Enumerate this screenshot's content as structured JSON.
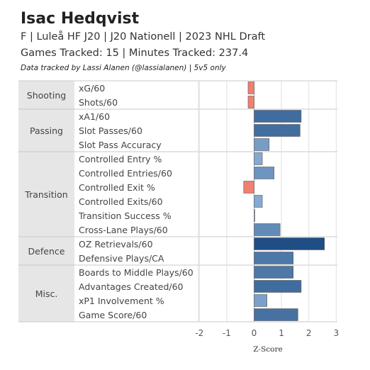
{
  "header": {
    "title": "Isac Hedqvist",
    "subtitle": "F | Luleå HF J20 | J20 Nationell | 2023 NHL Draft",
    "games_line": "Games Tracked: 15 | Minutes Tracked: 237.4",
    "note": "Data tracked by Lassi Alanen (@lassialanen) | 5v5 only"
  },
  "chart_data": {
    "type": "bar",
    "orientation": "horizontal",
    "xlabel": "Z-Score",
    "xlim": [
      -2.2,
      3.05
    ],
    "xticks": [
      -2,
      -1,
      0,
      1,
      2,
      3
    ],
    "grid": true,
    "legend": "none",
    "colors": {
      "negative": "#F08070",
      "positive_light": "#9BBDE2",
      "positive_dark": "#1F4E85",
      "group_band": "#E6E6E6",
      "grid": "#E0E0E0"
    },
    "groups": [
      {
        "name": "Shooting",
        "metrics": [
          {
            "label": "xG/60",
            "value": -0.22
          },
          {
            "label": "Shots/60",
            "value": -0.22
          }
        ]
      },
      {
        "name": "Passing",
        "metrics": [
          {
            "label": "xA1/60",
            "value": 1.72
          },
          {
            "label": "Slot Passes/60",
            "value": 1.68
          },
          {
            "label": "Slot Pass Accuracy",
            "value": 0.55
          }
        ]
      },
      {
        "name": "Transition",
        "metrics": [
          {
            "label": "Controlled Entry %",
            "value": 0.3
          },
          {
            "label": "Controlled Entries/60",
            "value": 0.73
          },
          {
            "label": "Controlled Exit %",
            "value": -0.38
          },
          {
            "label": "Controlled Exits/60",
            "value": 0.3
          },
          {
            "label": "Transition Success %",
            "value": 0.02
          },
          {
            "label": "Cross-Lane Plays/60",
            "value": 0.95
          }
        ]
      },
      {
        "name": "Defence",
        "metrics": [
          {
            "label": "OZ Retrievals/60",
            "value": 2.57
          },
          {
            "label": "Defensive Plays/CA",
            "value": 1.43
          }
        ]
      },
      {
        "name": "Misc.",
        "metrics": [
          {
            "label": "Boards to Middle Plays/60",
            "value": 1.43
          },
          {
            "label": "Advantages Created/60",
            "value": 1.72
          },
          {
            "label": "xP1 Involvement %",
            "value": 0.47
          },
          {
            "label": "Game Score/60",
            "value": 1.6
          }
        ]
      }
    ]
  }
}
